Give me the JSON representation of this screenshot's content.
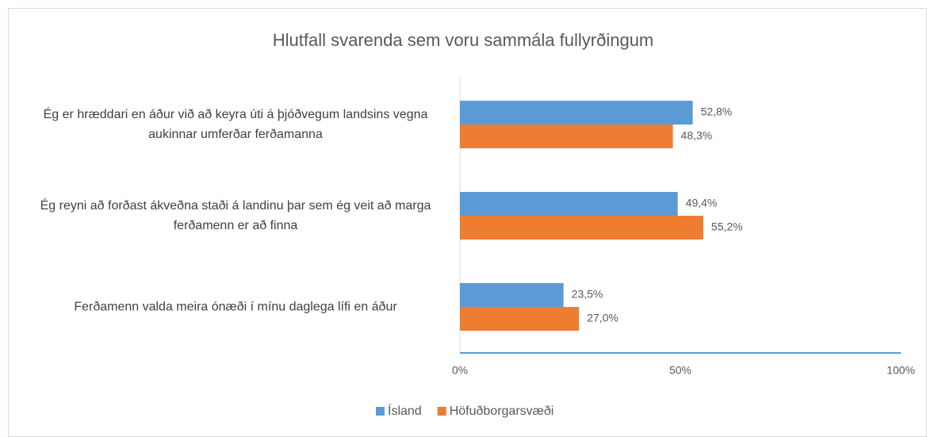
{
  "chart_data": {
    "type": "hbar",
    "title": "Hlutfall svarenda sem voru sammála fullyrðingum",
    "categories": [
      "Ég er hræddari en áður við að keyra úti á þjóðvegum landsins vegna aukinnar umferðar ferðamanna",
      "Ég reyni að forðast ákveðna staði á landinu þar sem ég veit að marga ferðamenn er að finna",
      "Ferðamenn valda meira ónæði í mínu daglega lífi en áður"
    ],
    "series": [
      {
        "name": "Ísland",
        "color": "#5b9bd5",
        "values": [
          52.8,
          49.4,
          23.5
        ],
        "value_labels": [
          "52,8%",
          "49,4%",
          "23,5%"
        ]
      },
      {
        "name": "Höfuðborgarsvæði",
        "color": "#ed7d31",
        "values": [
          48.3,
          55.2,
          27.0
        ],
        "value_labels": [
          "48,3%",
          "55,2%",
          "27,0%"
        ]
      }
    ],
    "xlim": [
      0,
      100
    ],
    "xticks": [
      {
        "value": 0,
        "label": "0%"
      },
      {
        "value": 50,
        "label": "50%"
      },
      {
        "value": 100,
        "label": "100%"
      }
    ],
    "legend": "bottom"
  }
}
